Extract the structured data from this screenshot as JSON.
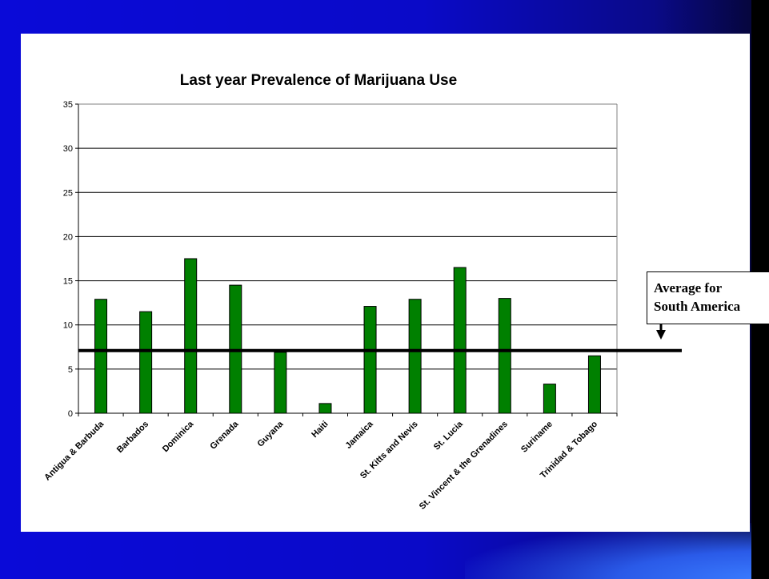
{
  "slide": {
    "colors": {
      "background": "#0a0ad8",
      "panel": "#ffffff",
      "bar": "#008000",
      "line": "#000000"
    }
  },
  "chart_data": {
    "type": "bar",
    "title": "Last year Prevalence of Marijuana Use",
    "categories": [
      "Antigua & Barbuda",
      "Barbados",
      "Dominica",
      "Grenada",
      "Guyana",
      "Haiti",
      "Jamaica",
      "St. Kitts and Nevis",
      "St. Lucia",
      "St. Vincent & the Grenadines",
      "Suriname",
      "Trinidad & Tobago"
    ],
    "values": [
      12.9,
      11.5,
      17.5,
      14.5,
      6.9,
      1.1,
      12.1,
      12.9,
      16.5,
      13.0,
      3.3,
      6.5
    ],
    "ylim": [
      0,
      35
    ],
    "yticks": [
      0,
      5,
      10,
      15,
      20,
      25,
      30,
      35
    ],
    "grid": true,
    "reference_line": {
      "value": 7.1
    },
    "annotation": {
      "line1": "Average for",
      "line2": "South America",
      "arrow": "down"
    }
  }
}
